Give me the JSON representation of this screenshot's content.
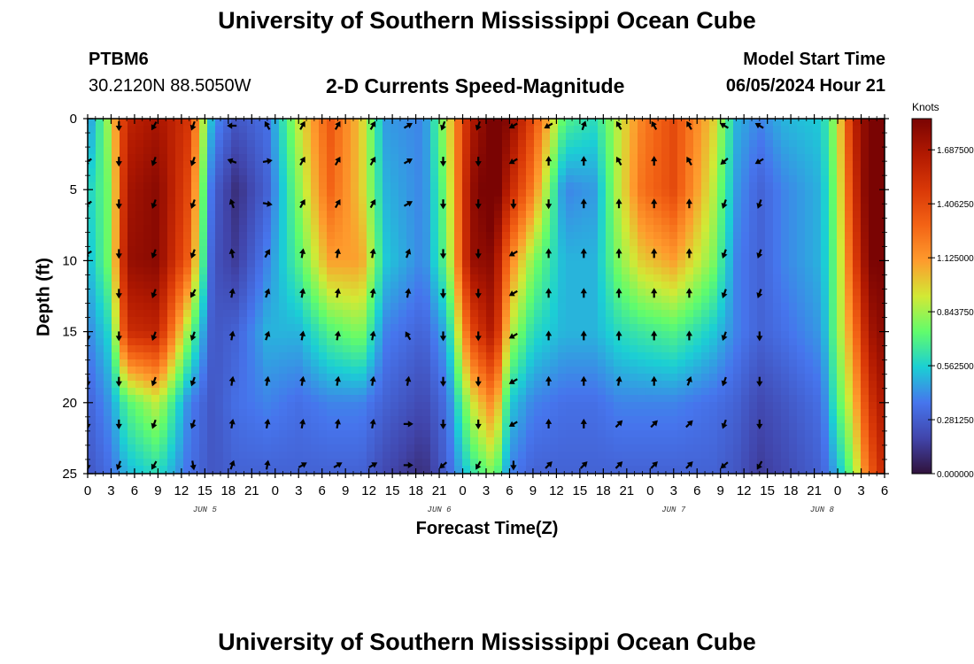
{
  "header": {
    "title": "University of Southern Mississippi Ocean Cube",
    "station": "PTBM6",
    "coords": "30.2120N  88.5050W",
    "model_start_label": "Model Start Time",
    "model_start_value": "06/05/2024 Hour 21"
  },
  "footer": {
    "title": "University of Southern Mississippi Ocean Cube"
  },
  "chart_data": {
    "type": "heatmap",
    "title": "2-D Currents Speed-Magnitude",
    "xlabel": "Forecast Time(Z)",
    "ylabel": "Depth (ft)",
    "colorbar_label": "Knots",
    "colorbar_ticks": [
      "0.000000",
      "0.281250",
      "0.562500",
      "0.843750",
      "1.125000",
      "1.406250",
      "1.687500"
    ],
    "colorbar_range": [
      0,
      1.85
    ],
    "ylim": [
      0,
      25
    ],
    "y_ticks": [
      0,
      5,
      10,
      15,
      20,
      25
    ],
    "x_hours_range": [
      0,
      102
    ],
    "x_tick_hours": [
      0,
      3,
      6,
      9,
      12,
      15,
      18,
      21,
      24,
      27,
      30,
      33,
      36,
      39,
      42,
      45,
      48,
      51,
      54,
      57,
      60,
      63,
      66,
      69,
      72,
      75,
      78,
      81,
      84,
      87,
      90,
      93,
      96,
      99,
      102
    ],
    "x_tick_labels": [
      "0",
      "3",
      "6",
      "9",
      "12",
      "15",
      "18",
      "21",
      "0",
      "3",
      "6",
      "9",
      "12",
      "15",
      "18",
      "21",
      "0",
      "3",
      "6",
      "9",
      "12",
      "15",
      "18",
      "21",
      "0",
      "3",
      "6",
      "9",
      "12",
      "15",
      "18",
      "21",
      "0",
      "3",
      "6"
    ],
    "date_labels": [
      {
        "text": "JUN 5",
        "hour": 15
      },
      {
        "text": "JUN 6",
        "hour": 45
      },
      {
        "text": "JUN 7",
        "hour": 75
      },
      {
        "text": "JUN 8",
        "hour": 94
      }
    ],
    "speed_grid": {
      "hours": [
        0,
        3,
        5,
        9,
        13,
        16,
        19,
        23,
        27,
        31,
        35,
        38,
        43,
        46,
        49,
        52,
        54,
        57,
        61,
        65,
        68,
        71,
        75,
        80,
        83,
        86,
        89,
        94,
        96,
        98,
        100,
        102
      ],
      "depths": [
        0,
        5,
        10,
        15,
        20,
        25
      ],
      "values": [
        [
          0.4,
          0.9,
          1.6,
          1.7,
          1.5,
          0.45,
          0.25,
          0.35,
          0.9,
          1.35,
          1.0,
          0.45,
          0.4,
          0.9,
          1.65,
          1.9,
          1.8,
          1.4,
          0.7,
          0.6,
          0.9,
          1.2,
          1.4,
          1.0,
          0.5,
          0.4,
          0.5,
          0.55,
          0.9,
          1.6,
          1.85,
          1.9
        ],
        [
          0.55,
          0.8,
          1.7,
          1.8,
          1.4,
          0.3,
          0.1,
          0.3,
          0.8,
          1.3,
          1.0,
          0.5,
          0.4,
          0.8,
          1.75,
          1.95,
          1.6,
          1.2,
          0.4,
          0.45,
          0.9,
          1.25,
          1.4,
          0.9,
          0.45,
          0.3,
          0.4,
          0.5,
          0.85,
          1.5,
          1.9,
          1.9
        ],
        [
          0.5,
          0.8,
          1.75,
          1.8,
          1.3,
          0.25,
          0.15,
          0.4,
          0.7,
          1.1,
          1.1,
          0.55,
          0.4,
          0.75,
          1.75,
          1.8,
          1.2,
          0.8,
          0.5,
          0.5,
          0.8,
          1.0,
          1.1,
          0.8,
          0.4,
          0.3,
          0.4,
          0.5,
          0.8,
          1.4,
          1.85,
          1.85
        ],
        [
          0.4,
          0.6,
          1.55,
          1.6,
          0.8,
          0.25,
          0.3,
          0.5,
          0.5,
          0.7,
          0.8,
          0.4,
          0.3,
          0.5,
          1.4,
          1.7,
          0.9,
          0.6,
          0.5,
          0.5,
          0.6,
          0.65,
          0.7,
          0.55,
          0.4,
          0.3,
          0.35,
          0.45,
          0.8,
          1.2,
          1.7,
          1.8
        ],
        [
          0.3,
          0.45,
          0.7,
          0.9,
          0.4,
          0.25,
          0.35,
          0.4,
          0.35,
          0.4,
          0.4,
          0.3,
          0.2,
          0.35,
          0.9,
          1.2,
          0.55,
          0.4,
          0.35,
          0.35,
          0.4,
          0.4,
          0.4,
          0.35,
          0.3,
          0.2,
          0.25,
          0.35,
          0.7,
          1.0,
          1.5,
          1.7
        ],
        [
          0.25,
          0.35,
          0.5,
          0.6,
          0.35,
          0.25,
          0.3,
          0.3,
          0.3,
          0.3,
          0.3,
          0.2,
          0.1,
          0.3,
          0.6,
          0.8,
          0.4,
          0.3,
          0.3,
          0.3,
          0.3,
          0.3,
          0.3,
          0.3,
          0.25,
          0.15,
          0.2,
          0.3,
          0.5,
          0.8,
          1.3,
          1.6
        ]
      ]
    },
    "arrow_columns": [
      {
        "hour": 0,
        "angles": [
          null,
          240,
          240,
          240,
          null,
          180,
          180,
          180,
          180
        ]
      },
      {
        "hour": 4,
        "angles": [
          180,
          180,
          180,
          180,
          180,
          180,
          180,
          180,
          200
        ]
      },
      {
        "hour": 8.5,
        "angles": [
          210,
          200,
          200,
          200,
          200,
          200,
          200,
          200,
          210
        ]
      },
      {
        "hour": 13.5,
        "angles": [
          200,
          200,
          200,
          200,
          210,
          200,
          200,
          200,
          170
        ]
      },
      {
        "hour": 18.5,
        "angles": [
          270,
          290,
          340,
          350,
          10,
          10,
          10,
          10,
          20
        ]
      },
      {
        "hour": 23,
        "angles": [
          330,
          80,
          100,
          30,
          20,
          20,
          10,
          10,
          10
        ]
      },
      {
        "hour": 27.5,
        "angles": [
          30,
          30,
          30,
          10,
          10,
          10,
          10,
          10,
          60
        ]
      },
      {
        "hour": 32,
        "angles": [
          30,
          30,
          30,
          10,
          10,
          10,
          10,
          10,
          60
        ]
      },
      {
        "hour": 36.5,
        "angles": [
          30,
          30,
          30,
          10,
          10,
          10,
          10,
          10,
          60
        ]
      },
      {
        "hour": 41,
        "angles": [
          60,
          60,
          60,
          20,
          10,
          330,
          10,
          90,
          90
        ]
      },
      {
        "hour": 45.5,
        "angles": [
          200,
          180,
          180,
          180,
          180,
          180,
          180,
          180,
          230
        ]
      },
      {
        "hour": 50,
        "angles": [
          200,
          180,
          180,
          180,
          180,
          180,
          180,
          180,
          210
        ]
      },
      {
        "hour": 54.5,
        "angles": [
          240,
          240,
          180,
          240,
          240,
          240,
          240,
          240,
          180
        ]
      },
      {
        "hour": 59,
        "angles": [
          240,
          0,
          180,
          0,
          0,
          0,
          0,
          0,
          45
        ]
      },
      {
        "hour": 63.5,
        "angles": [
          20,
          0,
          0,
          0,
          0,
          0,
          0,
          0,
          45
        ]
      },
      {
        "hour": 68,
        "angles": [
          330,
          330,
          0,
          0,
          0,
          0,
          10,
          45,
          45
        ]
      },
      {
        "hour": 72.5,
        "angles": [
          330,
          0,
          0,
          0,
          0,
          0,
          0,
          45,
          45
        ]
      },
      {
        "hour": 77,
        "angles": [
          330,
          330,
          0,
          0,
          0,
          0,
          20,
          45,
          45
        ]
      },
      {
        "hour": 81.5,
        "angles": [
          300,
          230,
          200,
          200,
          200,
          200,
          200,
          200,
          230
        ]
      },
      {
        "hour": 86,
        "angles": [
          300,
          240,
          200,
          200,
          200,
          180,
          180,
          180,
          210
        ]
      }
    ]
  }
}
